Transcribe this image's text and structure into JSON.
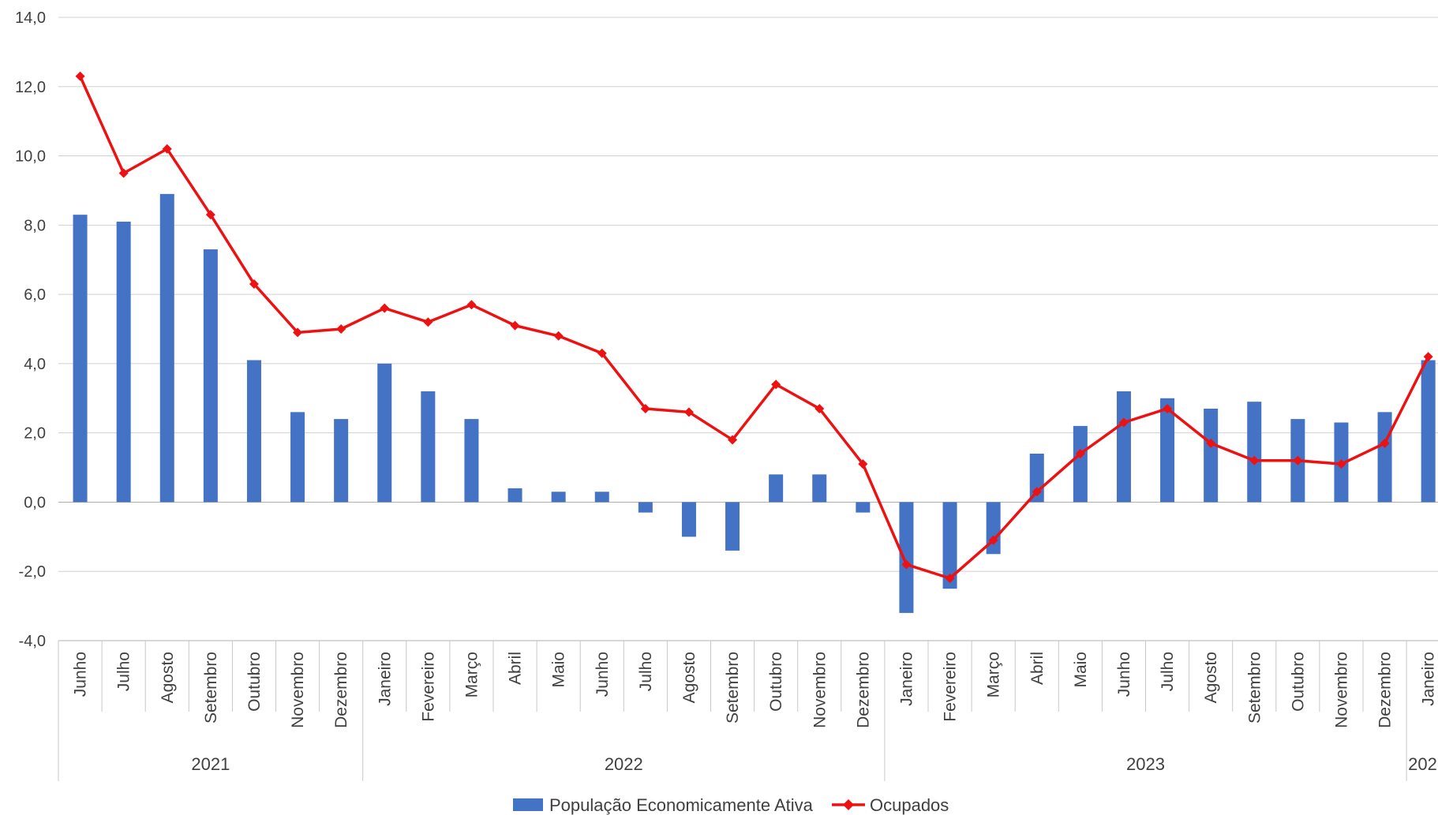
{
  "chart_data": {
    "type": "bar+line",
    "categories": [
      "Junho",
      "Julho",
      "Agosto",
      "Setembro",
      "Outubro",
      "Novembro",
      "Dezembro",
      "Janeiro",
      "Fevereiro",
      "Março",
      "Abril",
      "Maio",
      "Junho",
      "Julho",
      "Agosto",
      "Setembro",
      "Outubro",
      "Novembro",
      "Dezembro",
      "Janeiro",
      "Fevereiro",
      "Março",
      "Abril",
      "Maio",
      "Junho",
      "Julho",
      "Agosto",
      "Setembro",
      "Outubro",
      "Novembro",
      "Dezembro",
      "Janeiro"
    ],
    "year_groups": [
      {
        "label": "2021",
        "start": 0,
        "end": 6
      },
      {
        "label": "2022",
        "start": 7,
        "end": 18
      },
      {
        "label": "2023",
        "start": 19,
        "end": 30
      },
      {
        "label": "202",
        "start": 31,
        "end": 31
      }
    ],
    "series": [
      {
        "name": "População Economicamente Ativa",
        "type": "bar",
        "color": "#4472C4",
        "values": [
          8.3,
          8.1,
          8.9,
          7.3,
          4.1,
          2.6,
          2.4,
          4.0,
          3.2,
          2.4,
          0.4,
          0.3,
          0.3,
          -0.3,
          -1.0,
          -1.4,
          0.8,
          0.8,
          -0.3,
          -3.2,
          -2.5,
          -1.5,
          1.4,
          2.2,
          3.2,
          3.0,
          2.7,
          2.9,
          2.4,
          2.3,
          2.6,
          4.1
        ]
      },
      {
        "name": "Ocupados",
        "type": "line",
        "color": "#EE1111",
        "values": [
          12.3,
          9.5,
          10.2,
          8.3,
          6.3,
          4.9,
          5.0,
          5.6,
          5.2,
          5.7,
          5.1,
          4.8,
          4.3,
          2.7,
          2.6,
          1.8,
          3.4,
          2.7,
          1.1,
          -1.8,
          -2.2,
          -1.1,
          0.3,
          1.4,
          2.3,
          2.7,
          1.7,
          1.2,
          1.2,
          1.1,
          1.7,
          4.2
        ]
      }
    ],
    "yticks": [
      "14,0",
      "12,0",
      "10,0",
      "8,0",
      "6,0",
      "4,0",
      "2,0",
      "0,0",
      "-2,0",
      "-4,0"
    ],
    "ylim": [
      -4,
      14
    ],
    "grid": true,
    "legend_position": "bottom"
  }
}
